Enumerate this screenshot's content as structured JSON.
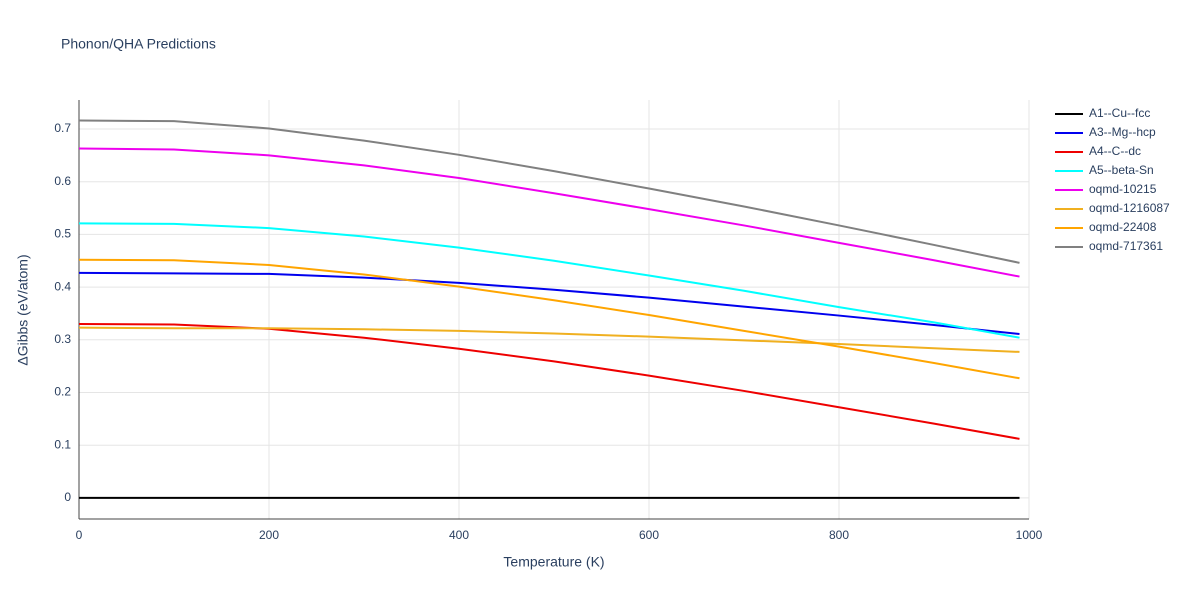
{
  "chart_data": {
    "type": "line",
    "title": "Phonon/QHA Predictions",
    "x_label": "Temperature (K)",
    "y_label": "ΔGibbs (eV/atom)",
    "x": [
      0,
      100,
      200,
      300,
      400,
      500,
      600,
      700,
      800,
      900,
      990
    ],
    "xlim": [
      0,
      1000
    ],
    "ylim": [
      -0.04,
      0.755
    ],
    "xticks": [
      0,
      200,
      400,
      600,
      800,
      1000
    ],
    "yticks": [
      0,
      0.1,
      0.2,
      0.3,
      0.4,
      0.5,
      0.6,
      0.7
    ],
    "grid": true,
    "legend": "right",
    "series": [
      {
        "name": "A1--Cu--fcc",
        "color": "#000000",
        "values": [
          0,
          0,
          0,
          0,
          0,
          0,
          0,
          0,
          0,
          0,
          0
        ]
      },
      {
        "name": "A3--Mg--hcp",
        "color": "#0000ee",
        "values": [
          0.427,
          0.426,
          0.425,
          0.418,
          0.408,
          0.395,
          0.38,
          0.363,
          0.346,
          0.328,
          0.311
        ]
      },
      {
        "name": "A4--C--dc",
        "color": "#ee0000",
        "values": [
          0.33,
          0.329,
          0.321,
          0.304,
          0.283,
          0.259,
          0.232,
          0.203,
          0.172,
          0.141,
          0.112
        ]
      },
      {
        "name": "A5--beta-Sn",
        "color": "#00ffff",
        "values": [
          0.521,
          0.52,
          0.512,
          0.496,
          0.475,
          0.45,
          0.422,
          0.393,
          0.362,
          0.333,
          0.304
        ]
      },
      {
        "name": "oqmd-10215",
        "color": "#ee00ee",
        "values": [
          0.663,
          0.661,
          0.65,
          0.631,
          0.607,
          0.578,
          0.548,
          0.517,
          0.484,
          0.451,
          0.42
        ]
      },
      {
        "name": "oqmd-1216087",
        "color": "#f0b020",
        "values": [
          0.323,
          0.322,
          0.322,
          0.32,
          0.317,
          0.312,
          0.306,
          0.299,
          0.292,
          0.284,
          0.277
        ]
      },
      {
        "name": "oqmd-22408",
        "color": "#ffa500",
        "values": [
          0.452,
          0.451,
          0.442,
          0.424,
          0.401,
          0.375,
          0.347,
          0.317,
          0.287,
          0.256,
          0.227
        ]
      },
      {
        "name": "oqmd-717361",
        "color": "#808080",
        "values": [
          0.716,
          0.715,
          0.701,
          0.678,
          0.651,
          0.62,
          0.587,
          0.553,
          0.517,
          0.48,
          0.446
        ]
      }
    ]
  }
}
